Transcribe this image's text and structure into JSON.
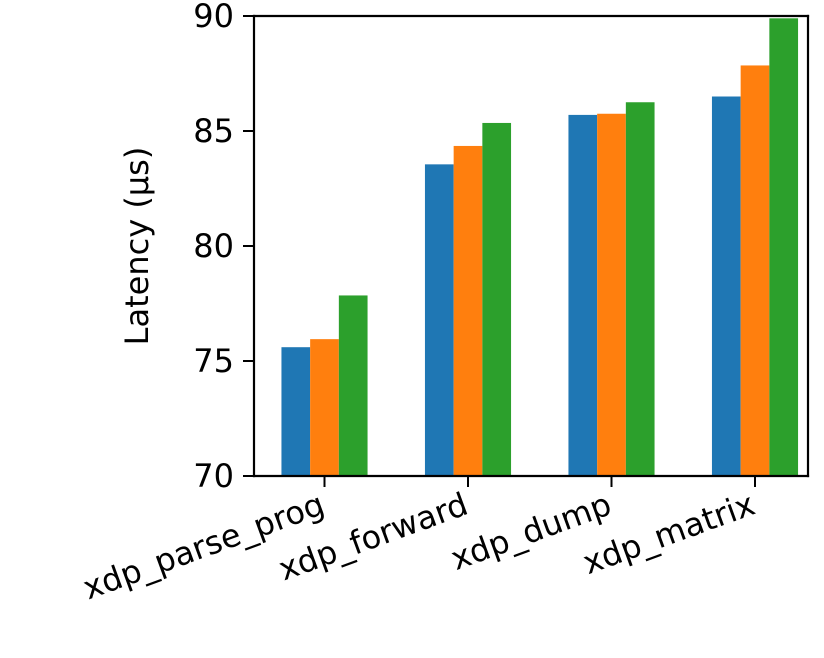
{
  "chart_data": {
    "type": "bar",
    "title": "",
    "xlabel": "",
    "ylabel": "Latency (μs)",
    "categories": [
      "xdp_parse_prog",
      "xdp_forward",
      "xdp_dump",
      "xdp_matrix"
    ],
    "series": [
      {
        "color": "#1f77b4",
        "values": [
          75.6,
          83.55,
          85.7,
          86.5
        ]
      },
      {
        "color": "#ff7f0e",
        "values": [
          75.95,
          84.35,
          85.75,
          87.85
        ]
      },
      {
        "color": "#2ca02c",
        "values": [
          77.85,
          85.35,
          86.25,
          89.9
        ]
      }
    ],
    "ylim": [
      70,
      90
    ],
    "yticks": [
      70,
      75,
      80,
      85,
      90
    ],
    "grid": false,
    "legend": "none"
  }
}
